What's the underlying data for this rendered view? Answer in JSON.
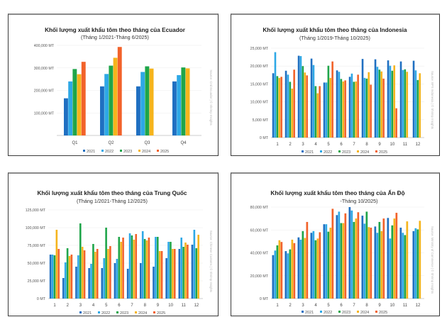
{
  "colors": {
    "2021": "#1f6fc1",
    "2022": "#2ea8e6",
    "2023": "#1fa54a",
    "2024": "#f5b41c",
    "2025": "#f2622a"
  },
  "chart_data": [
    {
      "type": "bar",
      "title": "Khối lượng xuất khẩu tôm theo tháng của Ecuador",
      "subtitle": "(Tháng 1/2021-Tháng 6/2025)",
      "xlabel": "",
      "ylabel": "",
      "source": "Source: Cnd Ecuador | © Shrimp Insights",
      "categories": [
        "Q1",
        "Q2",
        "Q3",
        "Q4"
      ],
      "yticks": [
        "100,000 MT",
        "200,000 MT",
        "300,000 MT",
        "400,000 MT"
      ],
      "ytick_values": [
        100000,
        200000,
        300000,
        400000
      ],
      "ylim": [
        0,
        400000
      ],
      "grid": true,
      "legend_position": "bottom",
      "series": [
        {
          "name": "2021",
          "values": [
            165000,
            218000,
            218000,
            240000
          ]
        },
        {
          "name": "2022",
          "values": [
            240000,
            273000,
            282000,
            268000
          ]
        },
        {
          "name": "2023",
          "values": [
            295000,
            310000,
            307000,
            302000
          ]
        },
        {
          "name": "2024",
          "values": [
            272000,
            345000,
            297000,
            298000
          ]
        },
        {
          "name": "2025",
          "values": [
            327000,
            393000,
            null,
            null
          ]
        }
      ]
    },
    {
      "type": "bar",
      "title": "Khối lượng xuất khẩu tôm theo tháng của Indonesia",
      "subtitle": "(Tháng 1/2019-Tháng 10/2025)",
      "xlabel": "",
      "ylabel": "",
      "source": "Source: BPS Indonesia | © Shrimp Insights",
      "categories": [
        "1",
        "2",
        "3",
        "4",
        "5",
        "6",
        "7",
        "8",
        "9",
        "10",
        "11",
        "12"
      ],
      "yticks": [
        "0 MT",
        "5,000 MT",
        "10,000 MT",
        "15,000 MT",
        "20,000 MT",
        "25,000 MT"
      ],
      "ytick_values": [
        0,
        5000,
        10000,
        15000,
        20000,
        25000
      ],
      "ylim": [
        0,
        25000
      ],
      "grid": true,
      "legend_position": "bottom",
      "series": [
        {
          "name": "2021",
          "values": [
            18000,
            18700,
            22900,
            22100,
            15400,
            18800,
            17000,
            22000,
            21900,
            21600,
            21300,
            21500
          ]
        },
        {
          "name": "2022",
          "values": [
            23900,
            17600,
            22800,
            20300,
            15400,
            18400,
            17900,
            16700,
            19800,
            20100,
            18900,
            18800
          ]
        },
        {
          "name": "2023",
          "values": [
            17200,
            15600,
            20000,
            14400,
            20100,
            16400,
            15600,
            16500,
            19000,
            18700,
            19100,
            16100
          ]
        },
        {
          "name": "2024",
          "values": [
            16700,
            13700,
            18200,
            12400,
            16700,
            15700,
            15700,
            18300,
            18500,
            20200,
            18400,
            18000
          ]
        },
        {
          "name": "2025",
          "values": [
            17000,
            19000,
            17400,
            14400,
            21300,
            16000,
            17600,
            14800,
            16500,
            8200,
            null,
            null
          ]
        }
      ]
    },
    {
      "type": "bar",
      "title": "Khối lượng xuất khẩu tôm theo tháng của Trung Quốc",
      "subtitle": "(Tháng 1/2021-Tháng 12/2025)",
      "xlabel": "",
      "ylabel": "",
      "source": "Source: Chinese Customs | © Shrimp Insights",
      "categories": [
        "1",
        "2",
        "3",
        "4",
        "5",
        "6",
        "7",
        "8",
        "9",
        "10",
        "11",
        "12"
      ],
      "yticks": [
        "0 MT",
        "25,000 MT",
        "50,000 MT",
        "75,000 MT",
        "100,000 MT",
        "125,000 MT"
      ],
      "ytick_values": [
        0,
        25000,
        50000,
        75000,
        100000,
        125000
      ],
      "ylim": [
        0,
        125000
      ],
      "grid": true,
      "legend_position": "bottom",
      "series": [
        {
          "name": "2021",
          "values": [
            62000,
            29000,
            45000,
            43000,
            43000,
            50000,
            42000,
            50000,
            45000,
            57000,
            70000,
            76000
          ]
        },
        {
          "name": "2022",
          "values": [
            62000,
            51000,
            61000,
            49000,
            57000,
            56000,
            92000,
            95000,
            87000,
            80000,
            86000,
            97000
          ]
        },
        {
          "name": "2023",
          "values": [
            61000,
            71000,
            106000,
            77000,
            100000,
            87000,
            89000,
            84000,
            87000,
            80000,
            73000,
            71000
          ]
        },
        {
          "name": "2024",
          "values": [
            97000,
            60000,
            73000,
            66000,
            70000,
            80000,
            83000,
            82000,
            67000,
            70000,
            79000,
            90000
          ]
        },
        {
          "name": "2025",
          "values": [
            70000,
            62000,
            68000,
            70000,
            74000,
            86000,
            91000,
            86000,
            67000,
            70000,
            76000,
            null
          ]
        }
      ]
    },
    {
      "type": "bar",
      "title": "Khối lượng xuất khẩu tôm theo tháng của Ấn Độ",
      "subtitle": "-Tháng 10/2025)",
      "xlabel": "",
      "ylabel": "",
      "source": "Source: Ministry of Commerce | © Shrimp Insights",
      "categories": [
        "1",
        "2",
        "3",
        "4",
        "5",
        "6",
        "7",
        "8",
        "9",
        "10",
        "11",
        "12"
      ],
      "yticks": [
        "0 MT",
        "20,000 MT",
        "40,000 MT",
        "60,000 MT",
        "80,000 MT"
      ],
      "ytick_values": [
        0,
        20000,
        40000,
        60000,
        80000
      ],
      "ylim": [
        0,
        80000
      ],
      "grid": true,
      "legend_position": "bottom",
      "series": [
        {
          "name": "2021",
          "values": [
            38000,
            41500,
            53500,
            57500,
            65000,
            73000,
            80000,
            72500,
            63000,
            70500,
            62000,
            59000
          ]
        },
        {
          "name": "2022",
          "values": [
            42000,
            39500,
            51500,
            59000,
            65000,
            76000,
            77000,
            65500,
            57500,
            52500,
            57500,
            61500
          ]
        },
        {
          "name": "2023",
          "values": [
            46500,
            43000,
            59000,
            51000,
            58500,
            66000,
            67000,
            76000,
            67000,
            64000,
            55500,
            60500
          ]
        },
        {
          "name": "2024",
          "values": [
            51000,
            51500,
            53000,
            52500,
            62000,
            66000,
            70000,
            62500,
            59000,
            70000,
            67500,
            68000
          ]
        },
        {
          "name": "2025",
          "values": [
            49500,
            48500,
            67000,
            58000,
            78500,
            74500,
            75500,
            62000,
            70000,
            75000,
            null,
            null
          ]
        }
      ]
    }
  ]
}
